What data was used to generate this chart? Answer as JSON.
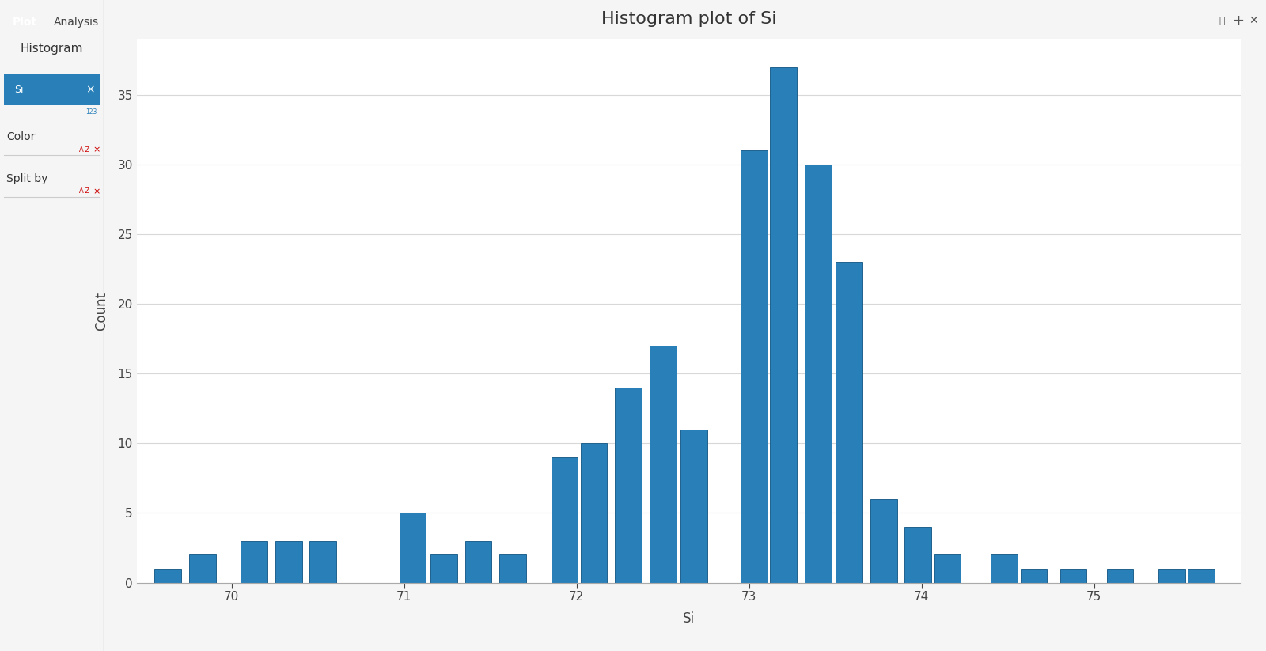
{
  "title": "Histogram plot of Si",
  "xlabel": "Si",
  "ylabel": "Count",
  "bar_color": "#2980b9",
  "bar_edgecolor": "#1f618d",
  "plot_bg_color": "#ffffff",
  "sidebar_bg": "#ffffff",
  "outer_bg": "#f5f5f5",
  "grid_color": "#d8d8d8",
  "ylim": [
    0,
    39
  ],
  "yticks": [
    0,
    5,
    10,
    15,
    20,
    25,
    30,
    35
  ],
  "xtick_values": [
    70,
    71,
    72,
    73,
    74,
    75
  ],
  "bar_centers": [
    69.63,
    69.83,
    70.13,
    70.33,
    70.53,
    71.05,
    71.23,
    71.43,
    71.63,
    71.93,
    72.1,
    72.3,
    72.5,
    72.68,
    72.85,
    73.03,
    73.2,
    73.4,
    73.58,
    73.78,
    73.98,
    74.15,
    74.48,
    74.65,
    74.88,
    75.15,
    75.45,
    75.62
  ],
  "bar_heights": [
    1,
    2,
    3,
    3,
    3,
    5,
    2,
    3,
    2,
    9,
    10,
    14,
    17,
    11,
    0,
    31,
    37,
    30,
    23,
    6,
    4,
    2,
    2,
    1,
    1,
    1,
    1,
    1
  ],
  "bar_width": 0.155,
  "tick_fontsize": 11,
  "axis_fontsize": 12,
  "title_fontsize": 16,
  "tab_plot_color": "#2980b9",
  "tab_analysis_color": "#f0f0f0",
  "si_pill_color": "#2980b9"
}
